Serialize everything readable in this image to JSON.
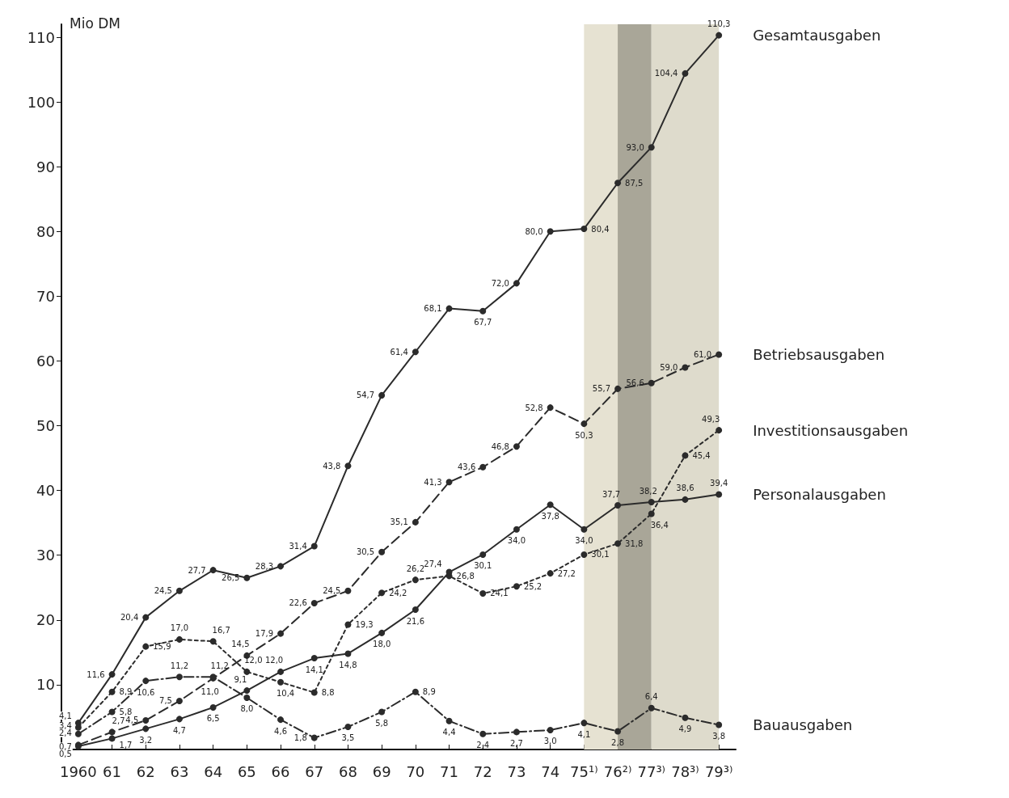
{
  "chart_data": {
    "type": "line",
    "ylabel": "Mio DM",
    "categories": [
      "1960",
      "61",
      "62",
      "63",
      "64",
      "65",
      "66",
      "67",
      "68",
      "69",
      "70",
      "71",
      "72",
      "73",
      "74",
      "75¹⁾",
      "76²⁾",
      "77³⁾",
      "78³⁾",
      "79³⁾"
    ],
    "series": [
      {
        "name": "Gesamtausgaben",
        "color": "#2b2b2b",
        "line_style": "solid",
        "values": [
          4.1,
          11.6,
          20.4,
          24.5,
          27.7,
          26.5,
          28.3,
          31.4,
          43.8,
          54.7,
          61.4,
          68.1,
          67.7,
          72.0,
          80.0,
          80.4,
          87.5,
          93.0,
          104.4,
          110.3
        ],
        "value_labels": [
          "4,1",
          "11,6",
          "20,4",
          "24,5",
          "27,7",
          "26,5",
          "28,3",
          "31,4",
          "43,8",
          "54,7",
          "61,4",
          "68,1",
          "67,7",
          "72,0",
          "80,0",
          "80,4",
          "87,5",
          "93,0",
          "104,4",
          "110,3"
        ]
      },
      {
        "name": "Betriebsausgaben",
        "color": "#2b2b2b",
        "line_style": "dashed",
        "values": [
          0.7,
          2.7,
          4.5,
          7.5,
          11.0,
          14.5,
          17.9,
          22.6,
          24.5,
          30.5,
          35.1,
          41.3,
          43.6,
          46.8,
          52.8,
          50.3,
          55.7,
          56.6,
          59.0,
          61.0
        ],
        "value_labels": [
          "0,7",
          "2,7",
          "4,5",
          "7,5",
          "11,0",
          "14,5",
          "17,9",
          "22,6",
          "24,5",
          "30,5",
          "35,1",
          "41,3",
          "43,6",
          "46,8",
          "52,8",
          "50,3",
          "55,7",
          "56,6",
          "59,0",
          "61,0"
        ]
      },
      {
        "name": "Investitionsausgaben",
        "color": "#2b2b2b",
        "line_style": "dotted",
        "values": [
          3.4,
          8.9,
          15.9,
          17.0,
          16.7,
          12.0,
          10.4,
          8.8,
          19.3,
          24.2,
          26.2,
          26.8,
          24.1,
          25.2,
          27.2,
          30.1,
          31.8,
          36.4,
          45.4,
          49.3
        ],
        "value_labels": [
          "3,4",
          "8,9",
          "15,9",
          "17,0",
          "16,7",
          "12,0",
          "10,4",
          "8,8",
          "19,3",
          "24,2",
          "26,2",
          "26,8",
          "24,1",
          "25,2",
          "27,2",
          "30,1",
          "31,8",
          "36,4",
          "45,4",
          "49,3"
        ]
      },
      {
        "name": "Personalausgaben",
        "color": "#2b2b2b",
        "line_style": "solid",
        "values": [
          0.5,
          1.7,
          3.2,
          4.7,
          6.5,
          9.1,
          12.0,
          14.1,
          14.8,
          18.0,
          21.6,
          27.4,
          30.1,
          34.0,
          37.8,
          34.0,
          37.7,
          38.2,
          38.6,
          39.4
        ],
        "value_labels": [
          "0,5",
          "1,7",
          "3,2",
          "4,7",
          "6,5",
          "9,1",
          "12,0",
          "14,1",
          "14,8",
          "18,0",
          "21,6",
          "27,4",
          "30,1",
          "34,0",
          "37,8",
          "34,0",
          "37,7",
          "38,2",
          "38,6",
          "39,4"
        ]
      },
      {
        "name": "Bauausgaben",
        "color": "#2b2b2b",
        "line_style": "dashdot",
        "values": [
          2.4,
          5.8,
          10.6,
          11.2,
          11.2,
          8.0,
          4.6,
          1.8,
          3.5,
          5.8,
          8.9,
          4.4,
          2.4,
          2.7,
          3.0,
          4.1,
          2.8,
          6.4,
          4.9,
          3.8
        ],
        "value_labels": [
          "2,4",
          "5,8",
          "10,6",
          "11,2",
          "11,2",
          "8,0",
          "4,6",
          "1,8",
          "3,5",
          "5,8",
          "8,9",
          "4,4",
          "2,4",
          "2,7",
          "3,0",
          "4,1",
          "2,8",
          "6,4",
          "4,9",
          "3,8"
        ]
      }
    ],
    "ylim": [
      0,
      112
    ],
    "yticks": [
      10,
      20,
      30,
      40,
      50,
      60,
      70,
      80,
      90,
      100,
      110
    ],
    "bands": [
      {
        "axis": "x",
        "from": "75¹⁾",
        "to": "76²⁾",
        "color": "#e6e2d2"
      },
      {
        "axis": "x",
        "from": "76²⁾",
        "to": "77³⁾",
        "color": "#a9a698"
      },
      {
        "axis": "x",
        "from": "77³⁾",
        "to": "79³⁾",
        "color": "#dedbcc"
      }
    ],
    "marker": "circle",
    "grid": false,
    "legend": false
  }
}
